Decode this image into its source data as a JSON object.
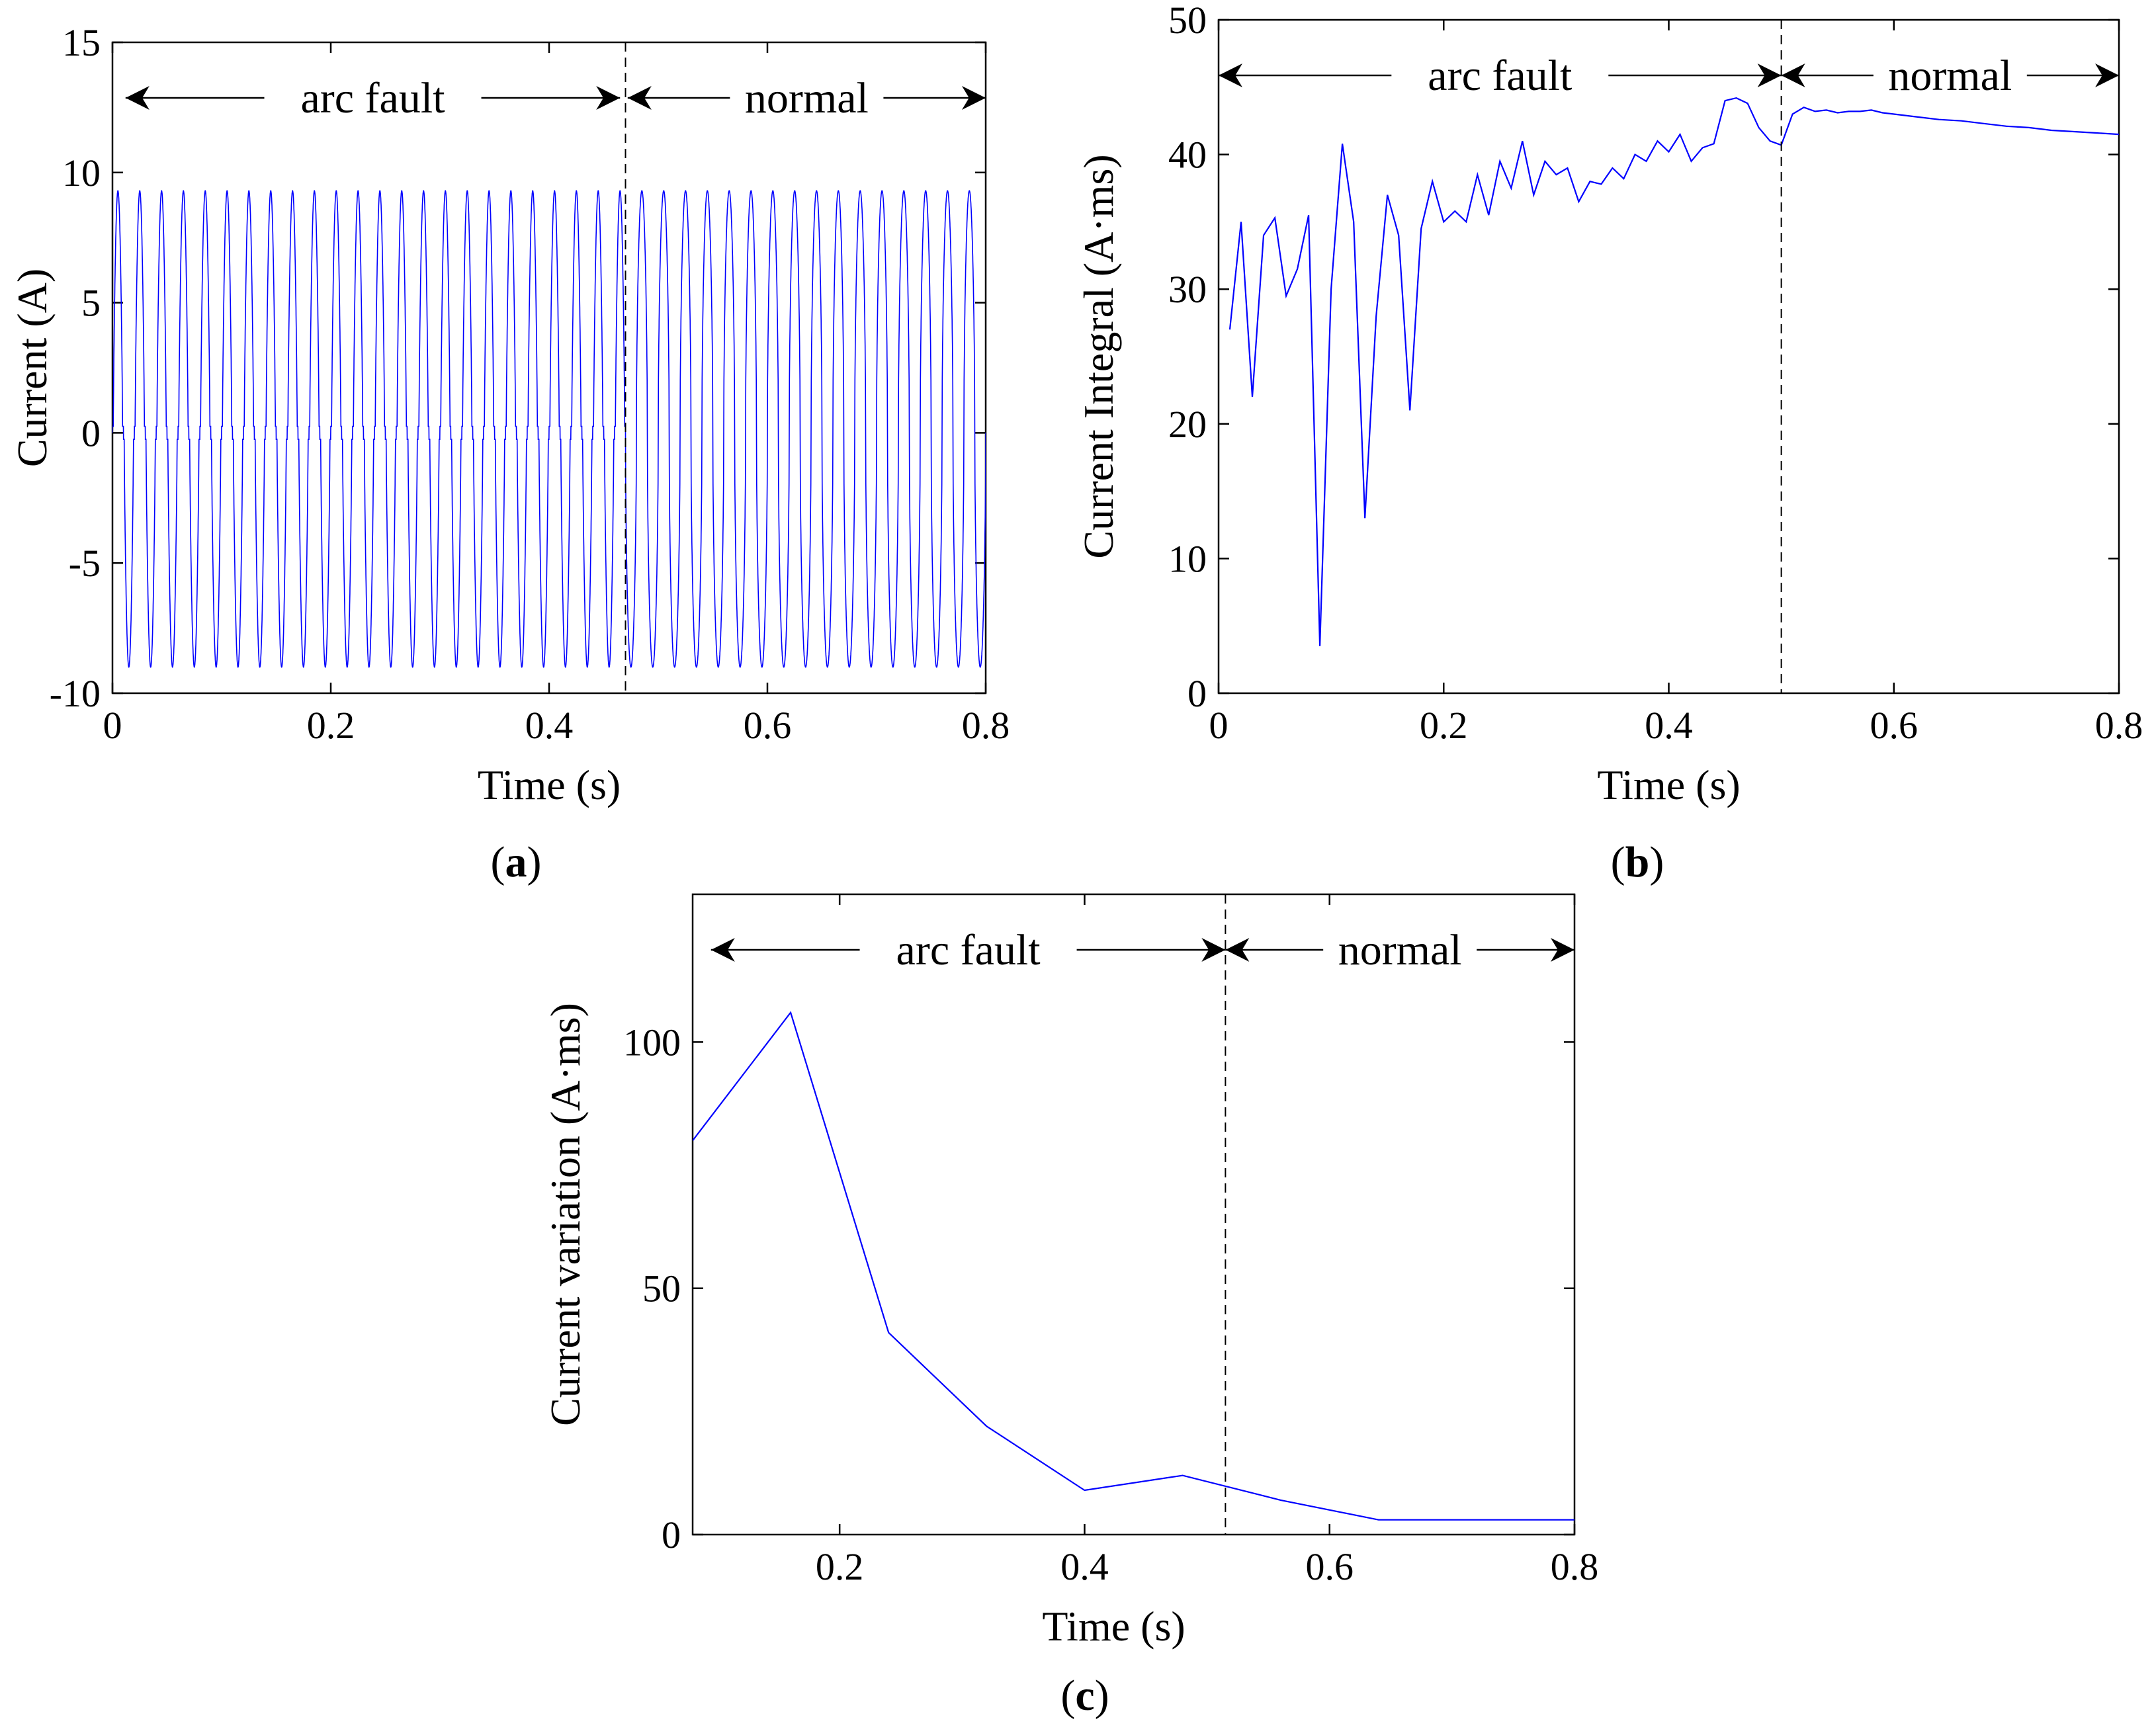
{
  "figure": {
    "panels": [
      "(a)",
      "(b)",
      "(c)"
    ]
  },
  "chart_data": [
    {
      "id": "a",
      "panel_label": "a",
      "type": "line",
      "xlabel": "Time (s)",
      "ylabel": "Current (A)",
      "xlim": [
        0,
        0.8
      ],
      "ylim": [
        -10,
        15
      ],
      "xticks": [
        "0",
        "0.2",
        "0.4",
        "0.6",
        "0.8"
      ],
      "yticks": [
        "-10",
        "-5",
        "0",
        "5",
        "10",
        "15"
      ],
      "divider_x": 0.47,
      "regions": [
        {
          "label": "arc fault",
          "from": 0.012,
          "to": 0.465
        },
        {
          "label": "normal",
          "from": 0.472,
          "to": 0.8
        }
      ],
      "color": "#0000ff",
      "series": [
        {
          "frequency_hz": 50,
          "arc_fault_end": 0.47,
          "peak_positive": 9.3,
          "peak_negative": -9.0
        }
      ]
    },
    {
      "id": "b",
      "panel_label": "b",
      "type": "line",
      "xlabel": "Time (s)",
      "ylabel": "Current Integral (A·ms)",
      "xlim": [
        0,
        0.8
      ],
      "ylim": [
        0,
        50
      ],
      "xticks": [
        "0",
        "0.2",
        "0.4",
        "0.6",
        "0.8"
      ],
      "yticks": [
        "0",
        "10",
        "20",
        "30",
        "40",
        "50"
      ],
      "divider_x": 0.5,
      "regions": [
        {
          "label": "arc fault",
          "from": 0.0,
          "to": 0.5
        },
        {
          "label": "normal",
          "from": 0.5,
          "to": 0.8
        }
      ],
      "color": "#0000ff",
      "series": [
        {
          "x": [
            0.01,
            0.02,
            0.03,
            0.04,
            0.05,
            0.06,
            0.07,
            0.08,
            0.09,
            0.1,
            0.11,
            0.12,
            0.13,
            0.14,
            0.15,
            0.16,
            0.17,
            0.18,
            0.19,
            0.2,
            0.21,
            0.22,
            0.23,
            0.24,
            0.25,
            0.26,
            0.27,
            0.28,
            0.29,
            0.3,
            0.31,
            0.32,
            0.33,
            0.34,
            0.35,
            0.36,
            0.37,
            0.38,
            0.39,
            0.4,
            0.41,
            0.42,
            0.43,
            0.44,
            0.45,
            0.46,
            0.47,
            0.48,
            0.49,
            0.5,
            0.51,
            0.52,
            0.53,
            0.54,
            0.55,
            0.56,
            0.57,
            0.58,
            0.59,
            0.6,
            0.62,
            0.64,
            0.66,
            0.68,
            0.7,
            0.72,
            0.74,
            0.76,
            0.78,
            0.8
          ],
          "y": [
            27,
            35,
            22,
            34,
            35.3,
            29.5,
            31.5,
            35.5,
            3.5,
            30,
            40.8,
            35,
            13,
            28,
            37,
            34,
            21,
            34.5,
            38,
            35,
            35.8,
            35,
            38.5,
            35.5,
            39.5,
            37.5,
            41,
            37,
            39.5,
            38.5,
            39,
            36.5,
            38,
            37.8,
            39,
            38.2,
            40,
            39.5,
            41,
            40.2,
            41.5,
            39.5,
            40.5,
            40.8,
            44,
            44.2,
            43.8,
            42,
            41,
            40.7,
            43,
            43.5,
            43.2,
            43.3,
            43.1,
            43.2,
            43.2,
            43.3,
            43.1,
            43.0,
            42.8,
            42.6,
            42.5,
            42.3,
            42.1,
            42.0,
            41.8,
            41.7,
            41.6,
            41.5
          ]
        }
      ]
    },
    {
      "id": "c",
      "panel_label": "c",
      "type": "line",
      "xlabel": "Time (s)",
      "ylabel": "Current variation (A·ms)",
      "xlim": [
        0.08,
        0.8
      ],
      "ylim": [
        0,
        130
      ],
      "xticks": [
        "0.2",
        "0.4",
        "0.6",
        "0.8"
      ],
      "yticks": [
        "0",
        "50",
        "100"
      ],
      "divider_x": 0.515,
      "regions": [
        {
          "label": "arc fault",
          "from": 0.095,
          "to": 0.515
        },
        {
          "label": "normal",
          "from": 0.515,
          "to": 0.8
        }
      ],
      "color": "#0000ff",
      "series": [
        {
          "x": [
            0.08,
            0.16,
            0.24,
            0.32,
            0.4,
            0.48,
            0.56,
            0.64,
            0.72,
            0.8
          ],
          "y": [
            80,
            106,
            41,
            22,
            9,
            12,
            7,
            3,
            3,
            3
          ]
        }
      ]
    }
  ]
}
